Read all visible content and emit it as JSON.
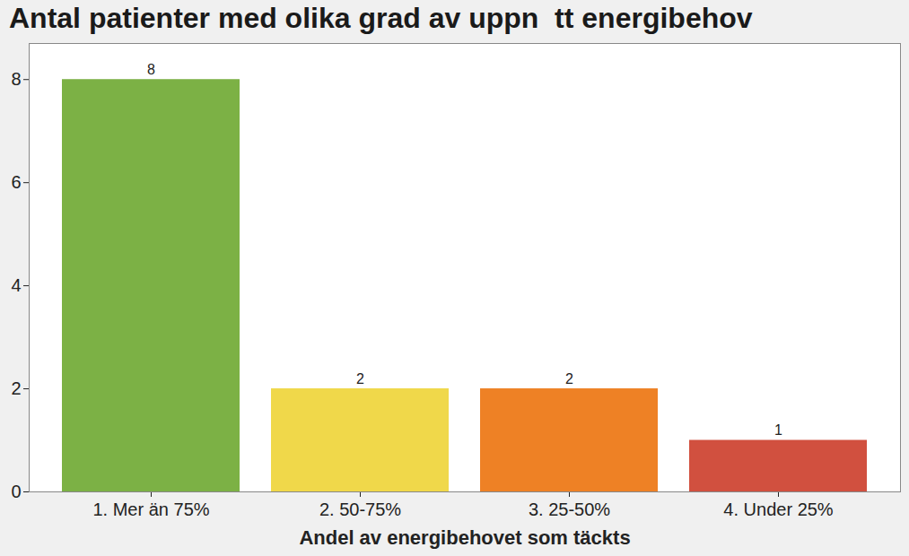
{
  "chart_data": {
    "type": "bar",
    "title": "Antal patienter med olika grad av uppn  tt energibehov",
    "x_label": "Andel av energibehovet som täckts",
    "categories": [
      "1. Mer än 75%",
      "2. 50-75%",
      "3. 25-50%",
      "4. Under 25%"
    ],
    "values": [
      8,
      2,
      2,
      1
    ],
    "colors": [
      "#7cb145",
      "#f0d84a",
      "#ee8125",
      "#d1503f"
    ],
    "ylim": [
      0,
      8.7
    ],
    "yticks": [
      0,
      2,
      4,
      6,
      8
    ],
    "grid": false,
    "data_labels": true
  }
}
